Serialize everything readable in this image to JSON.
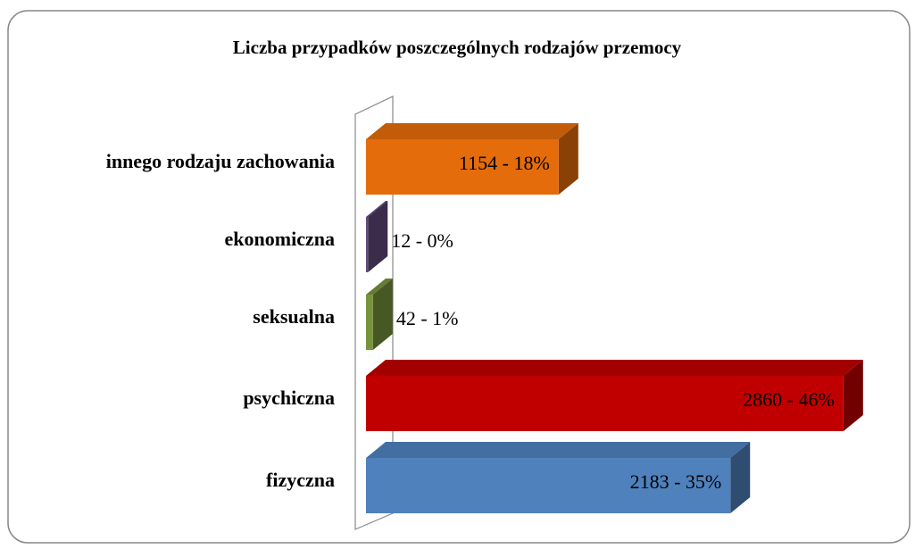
{
  "chart_data": {
    "type": "bar3d_horizontal",
    "title": "Liczba przypadków poszczególnych rodzajów przemocy",
    "categories": [
      "innego rodzaju zachowania",
      "ekonomiczna",
      "seksualna",
      "psychiczna",
      "fizyczna"
    ],
    "values": [
      1154,
      12,
      42,
      2860,
      2183
    ],
    "value_labels": [
      "1154 - 18%",
      "12 - 0%",
      "42 - 1%",
      "2860 - 46%",
      "2183 - 35%"
    ],
    "colors": [
      "#e46c0a",
      "#604a7b",
      "#77933c",
      "#c00000",
      "#4f81bd"
    ],
    "xlim": [
      0,
      3000
    ]
  }
}
